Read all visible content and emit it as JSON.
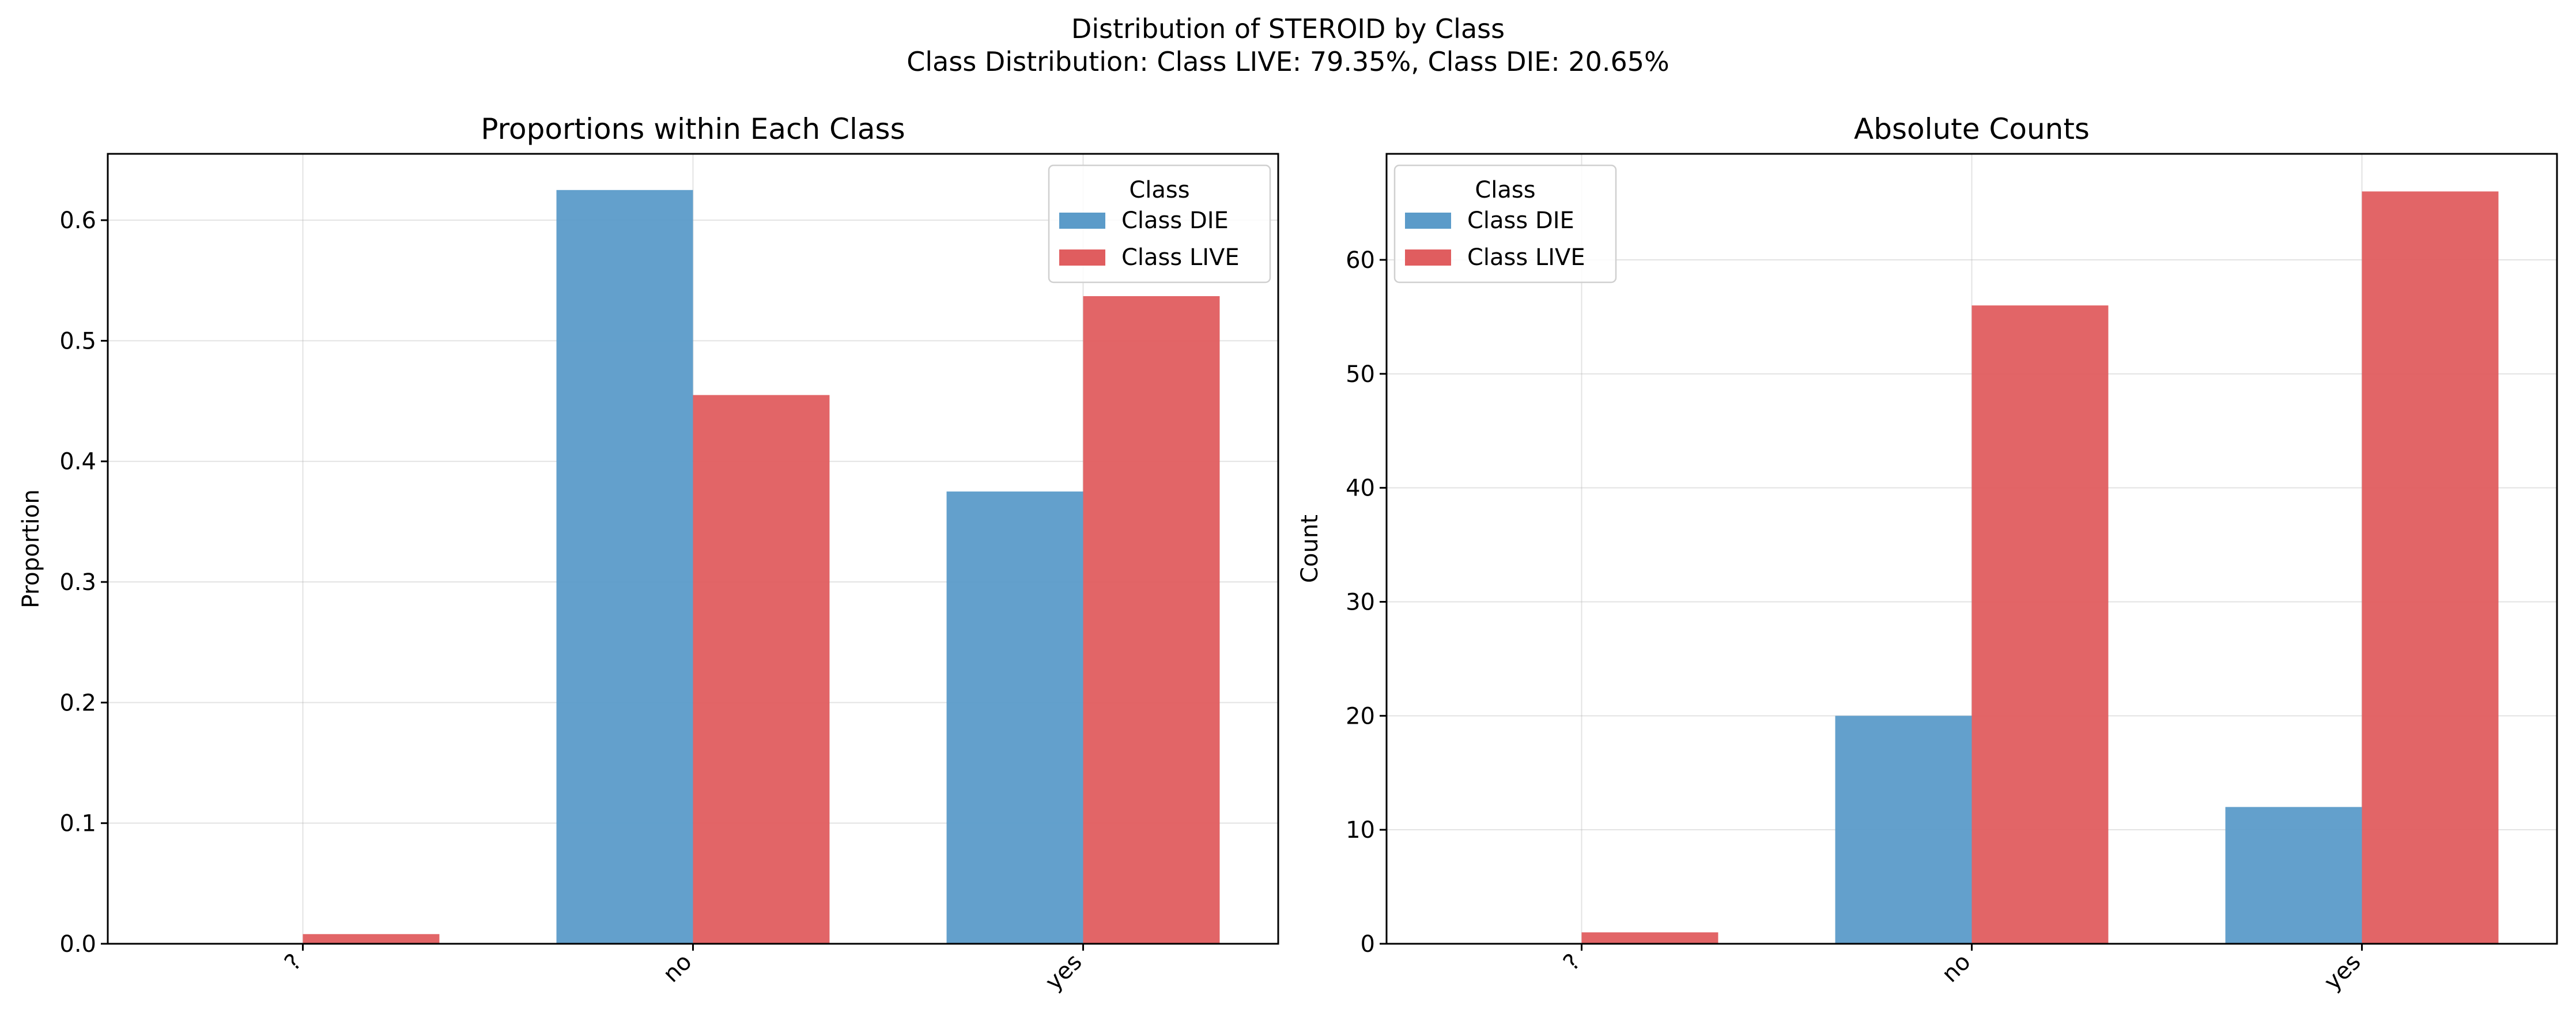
{
  "figure": {
    "suptitle_line1": "Distribution of STEROID by Class",
    "suptitle_line2": "Class Distribution: Class LIVE: 79.35%, Class DIE: 20.65%"
  },
  "colors": {
    "die": "#5b9bc9",
    "live": "#e05d5f"
  },
  "chart_data": [
    {
      "type": "bar",
      "title": "Proportions within Each Class",
      "xlabel": "",
      "ylabel": "Proportion",
      "categories": [
        "?",
        "no",
        "yes"
      ],
      "series": [
        {
          "name": "Class DIE",
          "values": [
            0.0,
            0.625,
            0.375
          ]
        },
        {
          "name": "Class LIVE",
          "values": [
            0.008,
            0.455,
            0.537
          ]
        }
      ],
      "ylim": [
        0,
        0.655
      ],
      "yticks": [
        0.0,
        0.1,
        0.2,
        0.3,
        0.4,
        0.5,
        0.6
      ],
      "ytick_labels": [
        "0.0",
        "0.1",
        "0.2",
        "0.3",
        "0.4",
        "0.5",
        "0.6"
      ],
      "grid": true,
      "legend": {
        "title": "Class",
        "placement": "upper-right"
      }
    },
    {
      "type": "bar",
      "title": "Absolute Counts",
      "xlabel": "",
      "ylabel": "Count",
      "categories": [
        "?",
        "no",
        "yes"
      ],
      "series": [
        {
          "name": "Class DIE",
          "values": [
            0,
            20,
            12
          ]
        },
        {
          "name": "Class LIVE",
          "values": [
            1,
            56,
            66
          ]
        }
      ],
      "ylim": [
        0,
        69.3
      ],
      "yticks": [
        0,
        10,
        20,
        30,
        40,
        50,
        60
      ],
      "ytick_labels": [
        "0",
        "10",
        "20",
        "30",
        "40",
        "50",
        "60"
      ],
      "grid": true,
      "legend": {
        "title": "Class",
        "placement": "upper-left"
      }
    }
  ]
}
